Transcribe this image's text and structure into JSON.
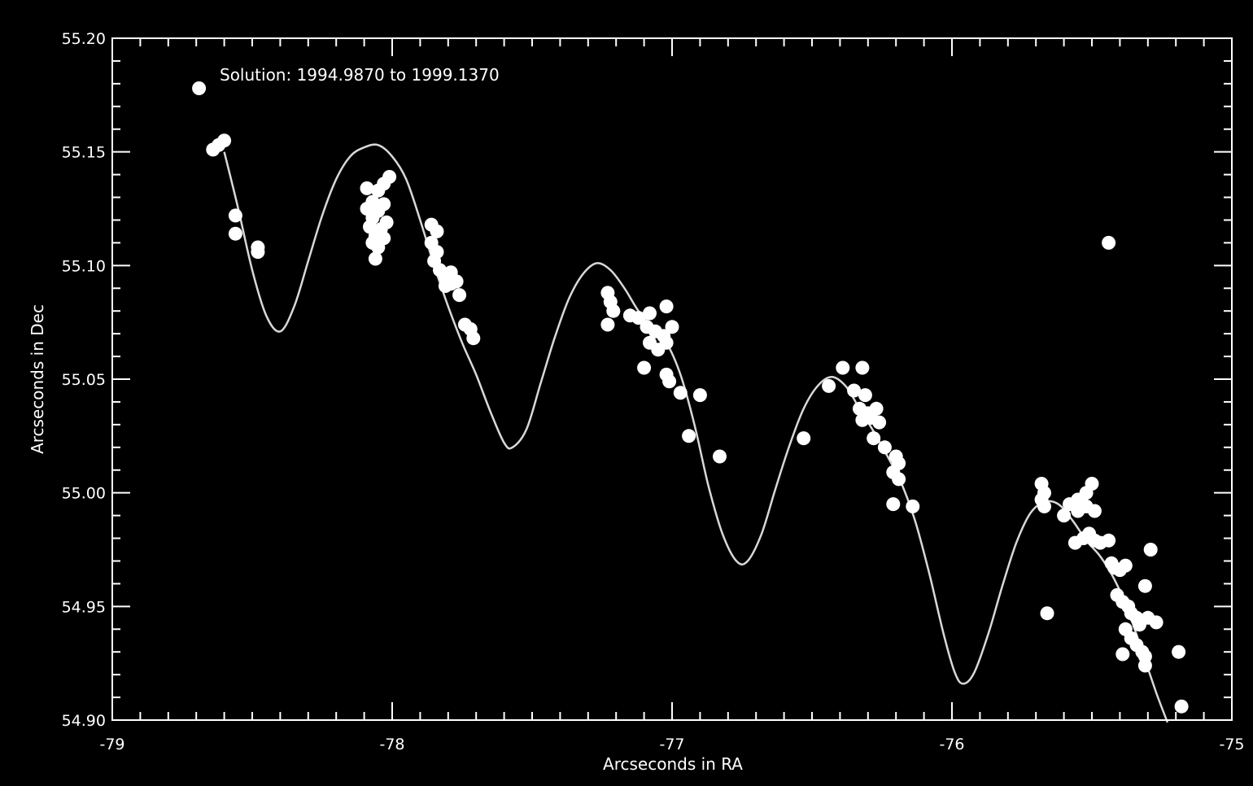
{
  "chart_data": {
    "type": "scatter",
    "annotation": "Solution: 1994.9870 to  1999.1370",
    "xlabel": "Arcseconds in RA",
    "ylabel": "Arcseconds in Dec",
    "xlim": [
      -79,
      -75
    ],
    "ylim": [
      54.9,
      55.2
    ],
    "x_ticks": [
      -79,
      -78,
      -77,
      -76,
      -75
    ],
    "x_tick_labels": [
      "-79",
      "-78",
      "-77",
      "-76",
      "-75"
    ],
    "y_ticks": [
      54.9,
      54.95,
      55.0,
      55.05,
      55.1,
      55.15,
      55.2
    ],
    "y_tick_labels": [
      "54.90",
      "54.95",
      "55.00",
      "55.05",
      "55.10",
      "55.15",
      "55.20"
    ],
    "grid": false,
    "colors": {
      "background": "#000000",
      "foreground": "#ffffff",
      "curve": "#d8d8d8"
    },
    "series": [
      {
        "kind": "points",
        "points": [
          [
            -78.69,
            55.178
          ],
          [
            -78.64,
            55.151
          ],
          [
            -78.62,
            55.153
          ],
          [
            -78.6,
            55.155
          ],
          [
            -78.56,
            55.122
          ],
          [
            -78.56,
            55.114
          ],
          [
            -78.48,
            55.108
          ],
          [
            -78.48,
            55.106
          ],
          [
            -78.09,
            55.134
          ],
          [
            -78.07,
            55.128
          ],
          [
            -78.05,
            55.133
          ],
          [
            -78.03,
            55.136
          ],
          [
            -78.01,
            55.139
          ],
          [
            -78.09,
            55.125
          ],
          [
            -78.07,
            55.121
          ],
          [
            -78.05,
            55.124
          ],
          [
            -78.03,
            55.127
          ],
          [
            -78.08,
            55.117
          ],
          [
            -78.06,
            55.113
          ],
          [
            -78.04,
            55.116
          ],
          [
            -78.02,
            55.119
          ],
          [
            -78.07,
            55.11
          ],
          [
            -78.05,
            55.108
          ],
          [
            -78.03,
            55.112
          ],
          [
            -78.06,
            55.103
          ],
          [
            -77.86,
            55.118
          ],
          [
            -77.84,
            55.115
          ],
          [
            -77.86,
            55.11
          ],
          [
            -77.84,
            55.106
          ],
          [
            -77.85,
            55.102
          ],
          [
            -77.83,
            55.098
          ],
          [
            -77.81,
            55.095
          ],
          [
            -77.79,
            55.097
          ],
          [
            -77.77,
            55.093
          ],
          [
            -77.81,
            55.091
          ],
          [
            -77.79,
            55.092
          ],
          [
            -77.76,
            55.087
          ],
          [
            -77.74,
            55.074
          ],
          [
            -77.72,
            55.072
          ],
          [
            -77.71,
            55.068
          ],
          [
            -77.23,
            55.088
          ],
          [
            -77.22,
            55.084
          ],
          [
            -77.21,
            55.08
          ],
          [
            -77.23,
            55.074
          ],
          [
            -77.15,
            55.078
          ],
          [
            -77.12,
            55.077
          ],
          [
            -77.08,
            55.079
          ],
          [
            -77.02,
            55.082
          ],
          [
            -77.09,
            55.073
          ],
          [
            -77.06,
            55.071
          ],
          [
            -77.03,
            55.069
          ],
          [
            -77.0,
            55.073
          ],
          [
            -77.08,
            55.066
          ],
          [
            -77.05,
            55.063
          ],
          [
            -77.02,
            55.066
          ],
          [
            -77.1,
            55.055
          ],
          [
            -77.02,
            55.052
          ],
          [
            -77.01,
            55.049
          ],
          [
            -76.97,
            55.044
          ],
          [
            -76.9,
            55.043
          ],
          [
            -76.94,
            55.025
          ],
          [
            -76.83,
            55.016
          ],
          [
            -76.53,
            55.024
          ],
          [
            -76.44,
            55.047
          ],
          [
            -76.39,
            55.055
          ],
          [
            -76.32,
            55.055
          ],
          [
            -76.35,
            55.045
          ],
          [
            -76.31,
            55.043
          ],
          [
            -76.33,
            55.037
          ],
          [
            -76.3,
            55.035
          ],
          [
            -76.27,
            55.037
          ],
          [
            -76.32,
            55.032
          ],
          [
            -76.29,
            55.033
          ],
          [
            -76.26,
            55.031
          ],
          [
            -76.28,
            55.024
          ],
          [
            -76.24,
            55.02
          ],
          [
            -76.2,
            55.016
          ],
          [
            -76.19,
            55.013
          ],
          [
            -76.21,
            55.009
          ],
          [
            -76.19,
            55.006
          ],
          [
            -76.21,
            54.995
          ],
          [
            -76.14,
            54.994
          ],
          [
            -75.68,
            55.004
          ],
          [
            -75.67,
            55.0
          ],
          [
            -75.68,
            54.997
          ],
          [
            -75.67,
            54.994
          ],
          [
            -75.6,
            54.99
          ],
          [
            -75.58,
            54.995
          ],
          [
            -75.55,
            54.997
          ],
          [
            -75.52,
            55.0
          ],
          [
            -75.5,
            55.004
          ],
          [
            -75.55,
            54.992
          ],
          [
            -75.52,
            54.994
          ],
          [
            -75.49,
            54.992
          ],
          [
            -75.56,
            54.978
          ],
          [
            -75.53,
            54.98
          ],
          [
            -75.51,
            54.982
          ],
          [
            -75.49,
            54.979
          ],
          [
            -75.47,
            54.978
          ],
          [
            -75.44,
            54.979
          ],
          [
            -75.43,
            54.969
          ],
          [
            -75.42,
            54.967
          ],
          [
            -75.4,
            54.966
          ],
          [
            -75.38,
            54.968
          ],
          [
            -75.41,
            54.955
          ],
          [
            -75.39,
            54.952
          ],
          [
            -75.37,
            54.95
          ],
          [
            -75.36,
            54.947
          ],
          [
            -75.34,
            54.945
          ],
          [
            -75.33,
            54.942
          ],
          [
            -75.38,
            54.94
          ],
          [
            -75.36,
            54.936
          ],
          [
            -75.34,
            54.933
          ],
          [
            -75.32,
            54.93
          ],
          [
            -75.31,
            54.928
          ],
          [
            -75.31,
            54.924
          ],
          [
            -75.39,
            54.929
          ],
          [
            -75.3,
            54.945
          ],
          [
            -75.27,
            54.943
          ],
          [
            -75.31,
            54.959
          ],
          [
            -75.29,
            54.975
          ],
          [
            -75.66,
            54.947
          ],
          [
            -75.19,
            54.93
          ],
          [
            -75.18,
            54.906
          ],
          [
            -75.44,
            55.11
          ]
        ]
      },
      {
        "kind": "curve",
        "points": [
          [
            -78.6,
            55.15
          ],
          [
            -78.55,
            55.125
          ],
          [
            -78.5,
            55.098
          ],
          [
            -78.45,
            55.078
          ],
          [
            -78.4,
            55.071
          ],
          [
            -78.35,
            55.082
          ],
          [
            -78.3,
            55.102
          ],
          [
            -78.25,
            55.122
          ],
          [
            -78.2,
            55.138
          ],
          [
            -78.15,
            55.148
          ],
          [
            -78.1,
            55.152
          ],
          [
            -78.05,
            55.153
          ],
          [
            -78.0,
            55.148
          ],
          [
            -77.95,
            55.138
          ],
          [
            -77.9,
            55.12
          ],
          [
            -77.85,
            55.1
          ],
          [
            -77.8,
            55.082
          ],
          [
            -77.75,
            55.066
          ],
          [
            -77.7,
            55.052
          ],
          [
            -77.65,
            55.036
          ],
          [
            -77.6,
            55.022
          ],
          [
            -77.57,
            55.02
          ],
          [
            -77.52,
            55.028
          ],
          [
            -77.47,
            55.048
          ],
          [
            -77.42,
            55.068
          ],
          [
            -77.37,
            55.085
          ],
          [
            -77.32,
            55.096
          ],
          [
            -77.27,
            55.101
          ],
          [
            -77.22,
            55.098
          ],
          [
            -77.17,
            55.09
          ],
          [
            -77.12,
            55.08
          ],
          [
            -77.07,
            55.073
          ],
          [
            -77.02,
            55.066
          ],
          [
            -76.97,
            55.052
          ],
          [
            -76.92,
            55.03
          ],
          [
            -76.87,
            55.003
          ],
          [
            -76.82,
            54.982
          ],
          [
            -76.77,
            54.97
          ],
          [
            -76.73,
            54.97
          ],
          [
            -76.68,
            54.982
          ],
          [
            -76.63,
            55.002
          ],
          [
            -76.58,
            55.021
          ],
          [
            -76.53,
            55.037
          ],
          [
            -76.48,
            55.047
          ],
          [
            -76.43,
            55.051
          ],
          [
            -76.38,
            55.047
          ],
          [
            -76.33,
            55.037
          ],
          [
            -76.28,
            55.027
          ],
          [
            -76.23,
            55.016
          ],
          [
            -76.18,
            55.004
          ],
          [
            -76.13,
            54.987
          ],
          [
            -76.08,
            54.964
          ],
          [
            -76.03,
            54.938
          ],
          [
            -75.99,
            54.921
          ],
          [
            -75.96,
            54.916
          ],
          [
            -75.92,
            54.921
          ],
          [
            -75.87,
            54.938
          ],
          [
            -75.82,
            54.959
          ],
          [
            -75.77,
            54.978
          ],
          [
            -75.72,
            54.991
          ],
          [
            -75.67,
            54.996
          ],
          [
            -75.62,
            54.995
          ],
          [
            -75.57,
            54.988
          ],
          [
            -75.52,
            54.979
          ],
          [
            -75.47,
            54.972
          ],
          [
            -75.42,
            54.962
          ],
          [
            -75.37,
            54.948
          ],
          [
            -75.32,
            54.93
          ],
          [
            -75.27,
            54.912
          ],
          [
            -75.23,
            54.899
          ]
        ]
      }
    ]
  }
}
